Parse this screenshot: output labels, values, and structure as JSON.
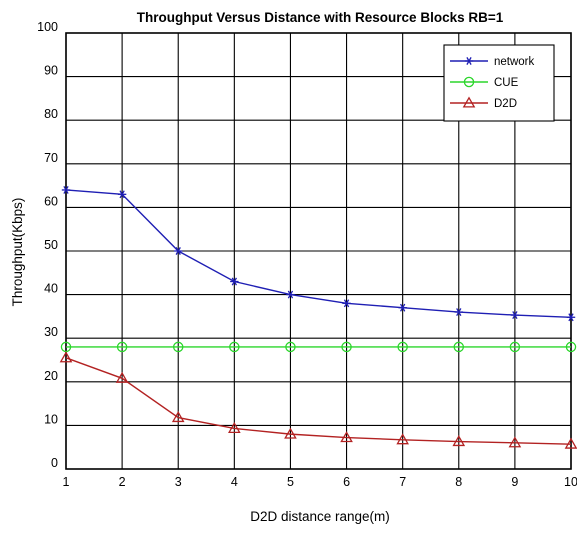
{
  "chart_data": {
    "type": "line",
    "title": "Throughput Versus Distance with Resource Blocks RB=1",
    "xlabel": "D2D distance range(m)",
    "ylabel": "Throughput(Kbps)",
    "xlim": [
      1,
      10
    ],
    "ylim": [
      0,
      100
    ],
    "x_ticks": [
      "1",
      "2",
      "3",
      "4",
      "5",
      "6",
      "7",
      "8",
      "9",
      "10"
    ],
    "y_ticks": [
      "0",
      "10",
      "20",
      "30",
      "40",
      "50",
      "60",
      "70",
      "80",
      "90",
      "100"
    ],
    "grid": true,
    "legend_position": "top-right",
    "x": [
      1,
      2,
      3,
      4,
      5,
      6,
      7,
      8,
      9,
      10
    ],
    "series": [
      {
        "name": "network",
        "color": "#1f1fb4",
        "marker": "asterisk",
        "values": [
          64,
          63,
          50,
          43,
          40,
          38,
          37,
          36,
          35.3,
          34.8
        ]
      },
      {
        "name": "CUE",
        "color": "#2bd62b",
        "marker": "circle",
        "values": [
          28,
          28,
          28,
          28,
          28,
          28,
          28,
          28,
          28,
          28
        ]
      },
      {
        "name": "D2D",
        "color": "#b32222",
        "marker": "triangle",
        "values": [
          25.5,
          20.8,
          11.8,
          9.3,
          8.0,
          7.2,
          6.7,
          6.3,
          6.0,
          5.7
        ]
      }
    ]
  }
}
